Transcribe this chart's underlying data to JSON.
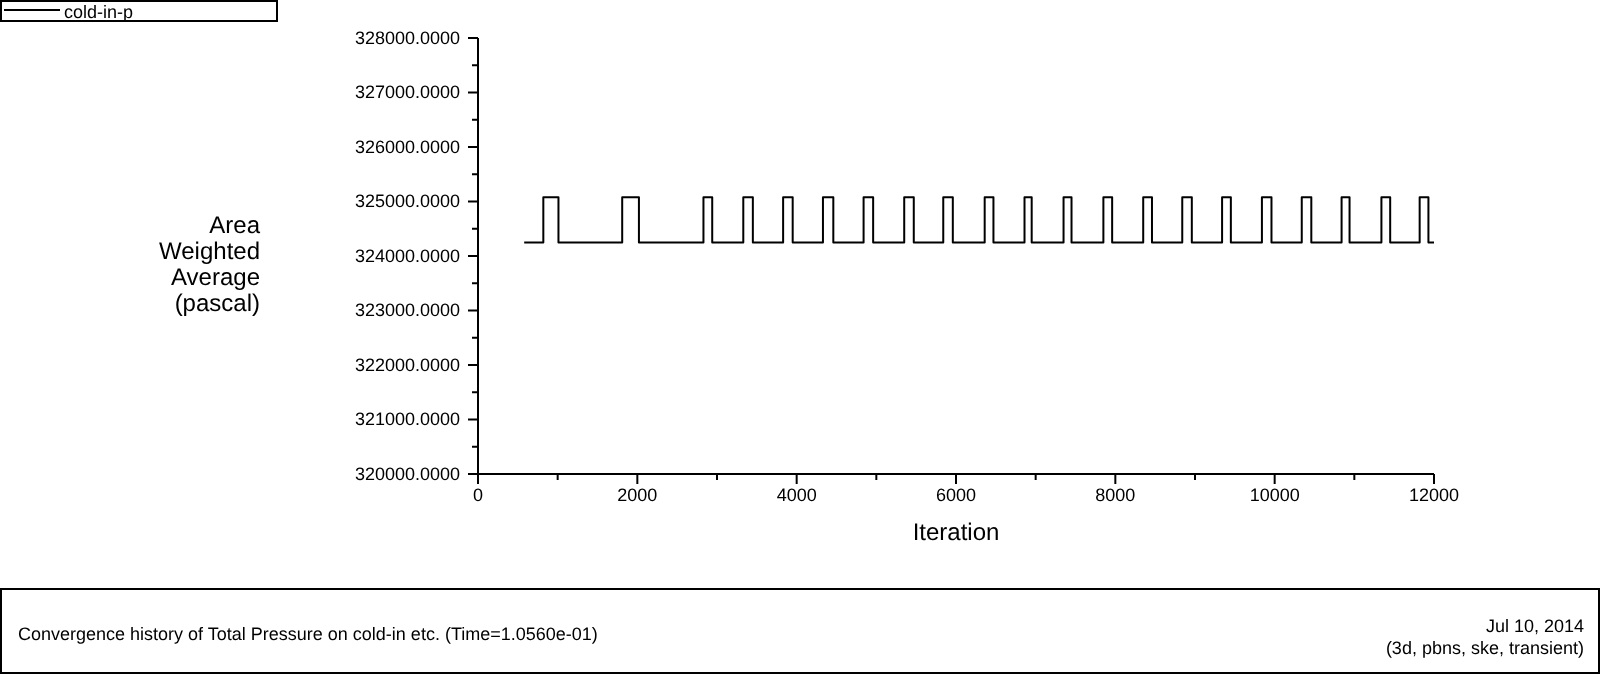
{
  "chart_data": {
    "type": "step",
    "title": "Convergence history of Total Pressure on cold-in etc.  (Time=1.0560e-01)",
    "annotations": [
      "Jul 10, 2014",
      "(3d, pbns, ske, transient)"
    ],
    "xlabel": "Iteration",
    "ylabel": "Area\nWeighted\nAverage\n(pascal)",
    "legend": "top left",
    "grid": false,
    "xlim": [
      0,
      12000
    ],
    "xticks": [
      0,
      {
        "value": 1000,
        "label": null
      },
      2000,
      {
        "value": 3000,
        "label": null
      },
      4000,
      {
        "value": 5000,
        "label": null
      },
      6000,
      {
        "value": 7000,
        "label": null
      },
      8000,
      {
        "value": 9000,
        "label": null
      },
      10000,
      {
        "value": 11000,
        "label": null
      },
      12000
    ],
    "ylim": [
      320000,
      328000
    ],
    "yticks": [
      {
        "value": 320000,
        "label": "320000.0000"
      },
      {
        "value": 320500,
        "label": null
      },
      {
        "value": 321000,
        "label": "321000.0000"
      },
      {
        "value": 321500,
        "label": null
      },
      {
        "value": 322000,
        "label": "322000.0000"
      },
      {
        "value": 322500,
        "label": null
      },
      {
        "value": 323000,
        "label": "323000.0000"
      },
      {
        "value": 323500,
        "label": null
      },
      {
        "value": 324000,
        "label": "324000.0000"
      },
      {
        "value": 324500,
        "label": null
      },
      {
        "value": 325000,
        "label": "325000.0000"
      },
      {
        "value": 325500,
        "label": null
      },
      {
        "value": 326000,
        "label": "326000.0000"
      },
      {
        "value": 326500,
        "label": null
      },
      {
        "value": 327000,
        "label": "327000.0000"
      },
      {
        "value": 327500,
        "label": null
      },
      {
        "value": 328000,
        "label": "328000.0000"
      }
    ],
    "series": [
      {
        "name": "cold-in-p",
        "color": "#000000",
        "x": [
          580,
          820,
          1010,
          1810,
          2020,
          2830,
          2940,
          3330,
          3450,
          3830,
          3950,
          4330,
          4460,
          4840,
          4960,
          5350,
          5470,
          5840,
          5960,
          6360,
          6470,
          6860,
          6950,
          7350,
          7450,
          7850,
          7960,
          8350,
          8460,
          8840,
          8960,
          9340,
          9450,
          9840,
          9960,
          10340,
          10460,
          10840,
          10940,
          11340,
          11450,
          11820,
          11930,
          12000
        ],
        "values": [
          324250,
          325080,
          324250,
          325080,
          324250,
          325080,
          324250,
          325080,
          324250,
          325080,
          324250,
          325080,
          324250,
          325080,
          324250,
          325080,
          324250,
          325080,
          324250,
          325080,
          324250,
          325080,
          324250,
          325080,
          324250,
          325080,
          324250,
          325080,
          324250,
          325080,
          324250,
          325080,
          324250,
          325080,
          324250,
          325080,
          324250,
          325080,
          324250,
          325080,
          324250,
          325080,
          324250,
          324250
        ]
      }
    ]
  }
}
